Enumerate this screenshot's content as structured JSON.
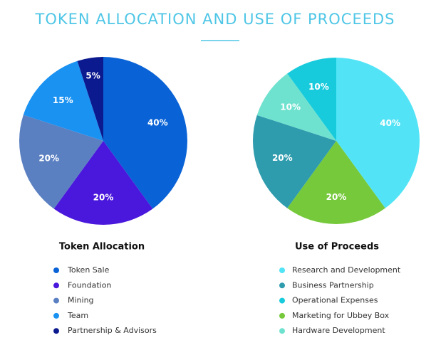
{
  "title": "TOKEN ALLOCATION AND USE OF PROCEEDS",
  "chart_data": [
    {
      "type": "pie",
      "title": "Token Allocation",
      "categories": [
        "Token Sale",
        "Foundation",
        "Mining",
        "Team",
        "Partnership & Advisors"
      ],
      "values": [
        40,
        20,
        20,
        15,
        5
      ],
      "value_labels": [
        "40%",
        "20%",
        "20%",
        "15%",
        "5%"
      ],
      "colors": [
        "#0a63d6",
        "#4a17dc",
        "#5b80c2",
        "#1a92f2",
        "#0c1a8f"
      ]
    },
    {
      "type": "pie",
      "title": "Use of Proceeds",
      "categories": [
        "Research and Development",
        "Marketing for Ubbey Box",
        "Business Partnership",
        "Hardware Development",
        "Operational Expenses"
      ],
      "values": [
        40,
        20,
        20,
        10,
        10
      ],
      "value_labels": [
        "40%",
        "20%",
        "20%",
        "10%",
        "10%"
      ],
      "colors": [
        "#52e4f6",
        "#76c93a",
        "#2f9cae",
        "#6fe2cf",
        "#18cbdc"
      ]
    }
  ]
}
